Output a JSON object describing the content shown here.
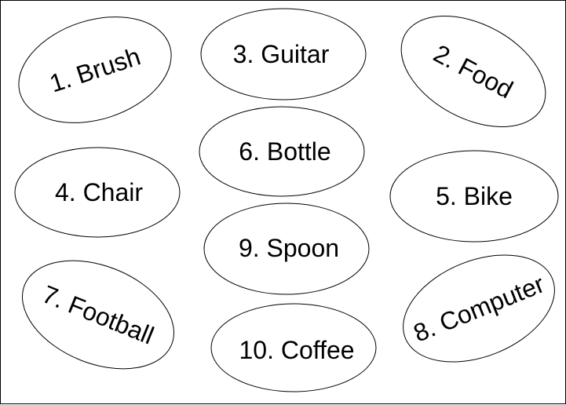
{
  "items": [
    {
      "label": "1. Brush"
    },
    {
      "label": "3. Guitar"
    },
    {
      "label": "2. Food"
    },
    {
      "label": "6. Bottle"
    },
    {
      "label": "4. Chair"
    },
    {
      "label": "5. Bike"
    },
    {
      "label": "9. Spoon"
    },
    {
      "label": "7. Football"
    },
    {
      "label": "8. Computer"
    },
    {
      "label": "10. Coffee"
    }
  ],
  "colors": {
    "stroke": "#000000",
    "fill": "#ffffff",
    "text": "#000000"
  }
}
